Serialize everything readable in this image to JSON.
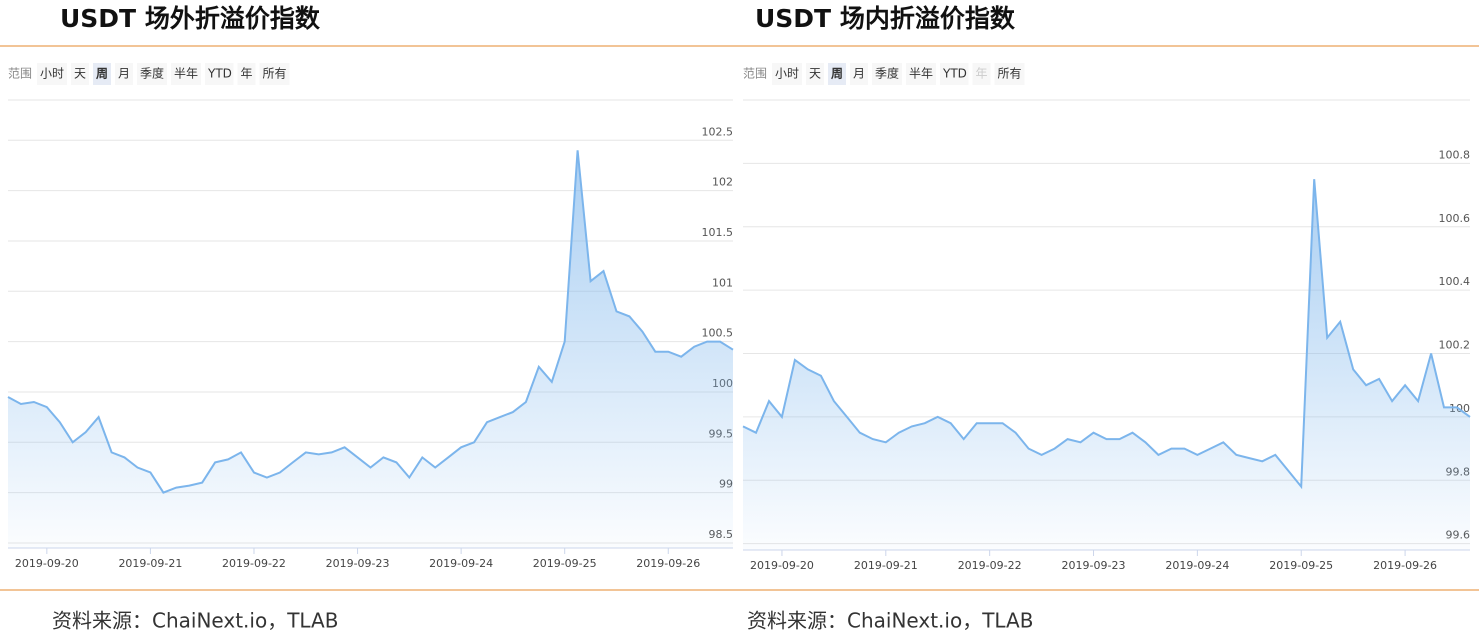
{
  "chart_data": [
    {
      "type": "area",
      "title": "USDT 场外折溢价指数",
      "range_label": "范围",
      "range_options": [
        "小时",
        "天",
        "周",
        "月",
        "季度",
        "半年",
        "YTD",
        "年",
        "所有"
      ],
      "selected_index": 2,
      "source": "资料来源：ChaiNext.io，TLAB",
      "categories": [
        null,
        null,
        null,
        "2019-09-20",
        null,
        null,
        null,
        null,
        null,
        null,
        null,
        "2019-09-21",
        null,
        null,
        null,
        null,
        null,
        null,
        null,
        "2019-09-22",
        null,
        null,
        null,
        null,
        null,
        null,
        null,
        "2019-09-23",
        null,
        null,
        null,
        null,
        null,
        null,
        null,
        "2019-09-24",
        null,
        null,
        null,
        null,
        null,
        null,
        null,
        "2019-09-25",
        null,
        null,
        null,
        null,
        null,
        null,
        null,
        "2019-09-26",
        null,
        null,
        null,
        null,
        null
      ],
      "series": [
        {
          "color": "#7cb5ec",
          "values": [
            99.95,
            99.88,
            99.9,
            99.85,
            99.7,
            99.5,
            99.6,
            99.75,
            99.4,
            99.35,
            99.25,
            99.2,
            99.0,
            99.05,
            99.07,
            99.1,
            99.3,
            99.33,
            99.4,
            99.2,
            99.15,
            99.2,
            99.3,
            99.4,
            99.38,
            99.4,
            99.45,
            99.35,
            99.25,
            99.35,
            99.3,
            99.15,
            99.35,
            99.25,
            99.35,
            99.45,
            99.5,
            99.7,
            99.75,
            99.8,
            99.9,
            100.25,
            100.1,
            100.5,
            102.4,
            101.1,
            101.2,
            100.8,
            100.75,
            100.6,
            100.4,
            100.4,
            100.35,
            100.45,
            100.5,
            100.5,
            100.42
          ]
        }
      ],
      "ylim": [
        98.45,
        102.9
      ],
      "yticks": [
        98.5,
        99,
        99.5,
        100,
        100.5,
        101,
        101.5,
        102,
        102.5
      ],
      "grid": true
    },
    {
      "type": "area",
      "title": "USDT 场内折溢价指数",
      "range_label": "范围",
      "range_options": [
        "小时",
        "天",
        "周",
        "月",
        "季度",
        "半年",
        "YTD",
        "年",
        "所有"
      ],
      "selected_index": 2,
      "disabled_index": 7,
      "source": "资料来源：ChaiNext.io，TLAB",
      "categories": [
        null,
        null,
        null,
        "2019-09-20",
        null,
        null,
        null,
        null,
        null,
        null,
        null,
        "2019-09-21",
        null,
        null,
        null,
        null,
        null,
        null,
        null,
        "2019-09-22",
        null,
        null,
        null,
        null,
        null,
        null,
        null,
        "2019-09-23",
        null,
        null,
        null,
        null,
        null,
        null,
        null,
        "2019-09-24",
        null,
        null,
        null,
        null,
        null,
        null,
        null,
        "2019-09-25",
        null,
        null,
        null,
        null,
        null,
        null,
        null,
        "2019-09-26",
        null,
        null,
        null,
        null,
        null
      ],
      "series": [
        {
          "color": "#7cb5ec",
          "values": [
            99.97,
            99.95,
            100.05,
            100.0,
            100.18,
            100.15,
            100.13,
            100.05,
            100.0,
            99.95,
            99.93,
            99.92,
            99.95,
            99.97,
            99.98,
            100.0,
            99.98,
            99.93,
            99.98,
            99.98,
            99.98,
            99.95,
            99.9,
            99.88,
            99.9,
            99.93,
            99.92,
            99.95,
            99.93,
            99.93,
            99.95,
            99.92,
            99.88,
            99.9,
            99.9,
            99.88,
            99.9,
            99.92,
            99.88,
            99.87,
            99.86,
            99.88,
            99.83,
            99.78,
            100.75,
            100.25,
            100.3,
            100.15,
            100.1,
            100.12,
            100.05,
            100.1,
            100.05,
            100.2,
            100.03,
            100.03,
            100.0
          ]
        }
      ],
      "ylim": [
        99.58,
        101.0
      ],
      "yticks": [
        99.6,
        99.8,
        100,
        100.2,
        100.4,
        100.6,
        100.8
      ],
      "grid": true
    }
  ]
}
